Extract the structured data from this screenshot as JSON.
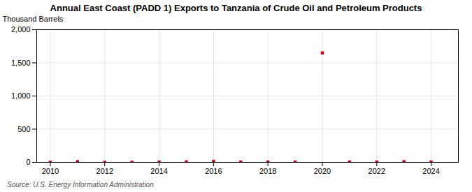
{
  "chart_data": {
    "type": "scatter",
    "title": "Annual East Coast (PADD 1) Exports to Tanzania of Crude Oil and Petroleum Products",
    "ylabel": "Thousand Barrels",
    "source": "Source: U.S. Energy Information Administration",
    "x": [
      2010,
      2011,
      2012,
      2013,
      2014,
      2015,
      2016,
      2017,
      2018,
      2019,
      2020,
      2021,
      2022,
      2023,
      2024
    ],
    "values": [
      0,
      10,
      0,
      0,
      5,
      8,
      15,
      5,
      5,
      5,
      1650,
      5,
      5,
      10,
      5
    ],
    "color": "#cc0000",
    "marker": "square",
    "xlim": [
      2009.5,
      2025.0
    ],
    "xticks": [
      2010,
      2012,
      2014,
      2016,
      2018,
      2020,
      2022,
      2024
    ],
    "ylim": [
      0,
      2000
    ],
    "yticks": [
      0,
      500,
      {
        "value": 1000,
        "label": "1,000"
      },
      {
        "value": 1500,
        "label": "1,500"
      },
      {
        "value": 2000,
        "label": "2,000"
      }
    ],
    "grid": true
  }
}
